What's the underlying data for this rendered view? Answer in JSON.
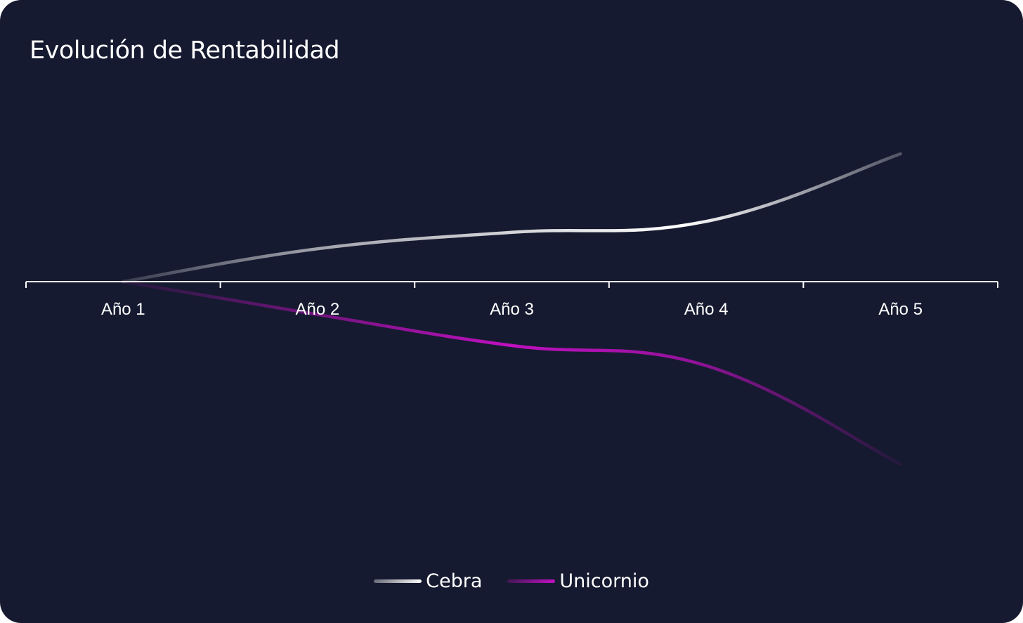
{
  "chart_data": {
    "type": "line",
    "title": "Evolución de Rentabilidad",
    "categories": [
      "Año 1",
      "Año 2",
      "Año 3",
      "Año 4",
      "Año 5"
    ],
    "series": [
      {
        "name": "Cebra",
        "values": [
          0,
          1.8,
          2.7,
          3.3,
          7.0
        ],
        "color": "#ffffff"
      },
      {
        "name": "Unicornio",
        "values": [
          0,
          -1.8,
          -3.5,
          -4.6,
          -10.0
        ],
        "color": "#c010c0"
      }
    ],
    "ylim": [
      -12,
      10
    ],
    "grid": false,
    "legend_position": "bottom",
    "smooth": true
  },
  "colors": {
    "background": "#161a30",
    "axis": "#ffffff"
  }
}
